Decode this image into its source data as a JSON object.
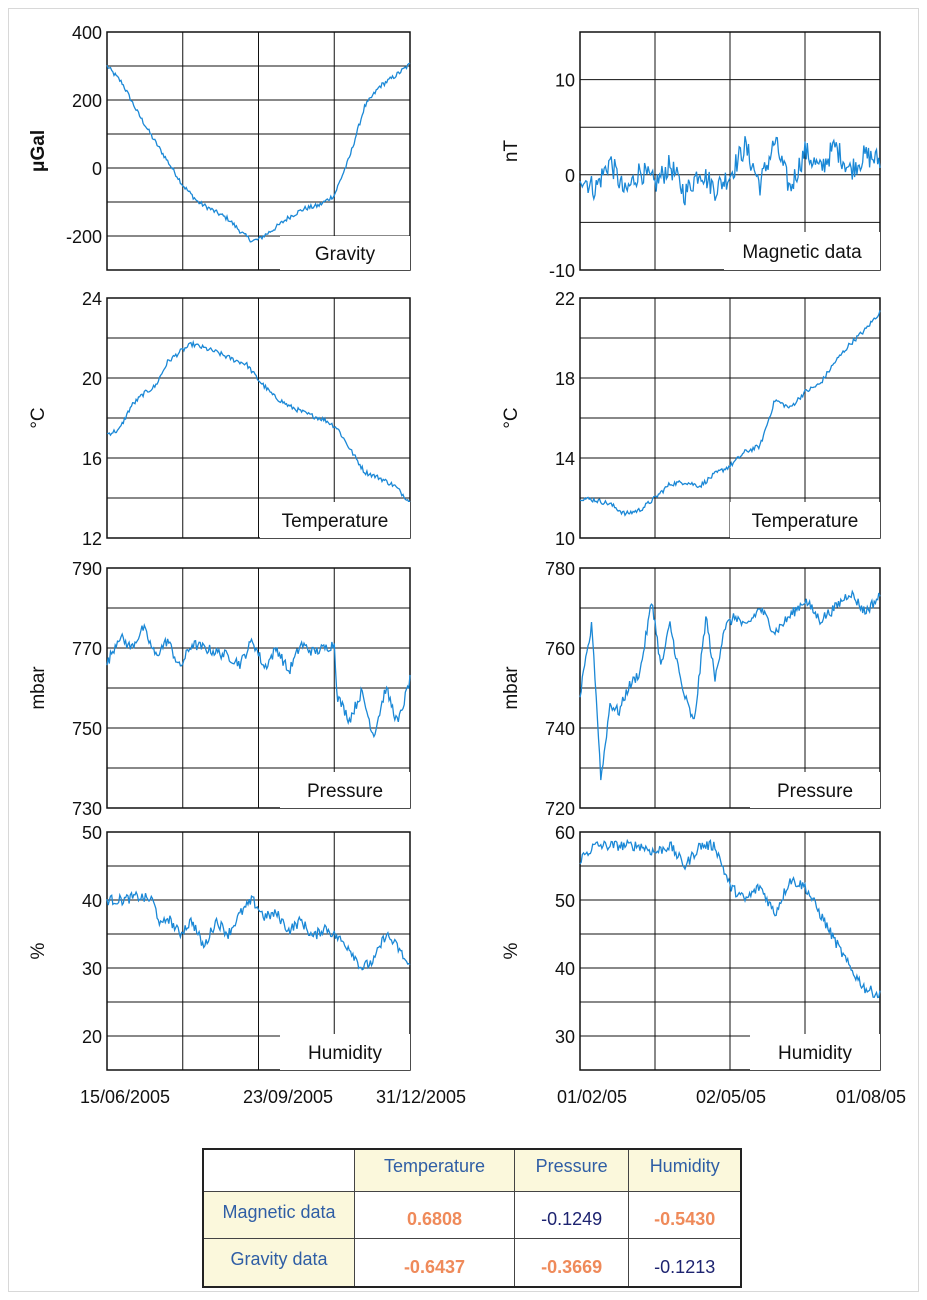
{
  "colors": {
    "line": "#1b88d6",
    "strong": "#ef8a5a",
    "weak": "#1d2370",
    "header_text": "#2f5ea5",
    "header_bg": "#fbf8dc"
  },
  "chart_data": [
    {
      "type": "line",
      "panel": "left-1",
      "label": "Gravity",
      "ylabel": "μGal",
      "ylim": [
        -300,
        400
      ],
      "yticks": [
        -200,
        0,
        200,
        400
      ],
      "yticklabels": [
        "-200",
        "0",
        "200",
        "400"
      ],
      "x": [
        0,
        0.05,
        0.1,
        0.15,
        0.2,
        0.25,
        0.3,
        0.35,
        0.4,
        0.45,
        0.48,
        0.5,
        0.55,
        0.6,
        0.65,
        0.7,
        0.75,
        0.8,
        0.85,
        0.9,
        0.95,
        1.0
      ],
      "y": [
        300,
        250,
        165,
        90,
        20,
        -50,
        -100,
        -125,
        -150,
        -195,
        -215,
        -210,
        -180,
        -145,
        -120,
        -110,
        -80,
        30,
        180,
        240,
        270,
        305
      ]
    },
    {
      "type": "line",
      "panel": "right-1",
      "label": "Magnetic data",
      "ylabel": "nT",
      "ylim": [
        -10,
        15
      ],
      "yticks": [
        -10,
        0,
        10
      ],
      "yticklabels": [
        "-10",
        "0",
        "10"
      ],
      "x": [
        0,
        0.05,
        0.1,
        0.15,
        0.2,
        0.25,
        0.3,
        0.35,
        0.4,
        0.45,
        0.5,
        0.55,
        0.6,
        0.65,
        0.7,
        0.75,
        0.8,
        0.85,
        0.9,
        0.95,
        1.0
      ],
      "y": [
        0,
        -1.5,
        1.5,
        -2,
        0.5,
        -1,
        1,
        -2,
        0.5,
        -1.5,
        0,
        3,
        -1,
        3.5,
        -1.5,
        2.5,
        0.5,
        3,
        0.5,
        2,
        1.5
      ]
    },
    {
      "type": "line",
      "panel": "left-2",
      "label": "Temperature",
      "ylabel": "°C",
      "ylim": [
        12,
        24
      ],
      "yticks": [
        12,
        16,
        20,
        24
      ],
      "yticklabels": [
        "12",
        "16",
        "20",
        "24"
      ],
      "x": [
        0,
        0.04,
        0.08,
        0.12,
        0.16,
        0.2,
        0.24,
        0.28,
        0.32,
        0.36,
        0.42,
        0.46,
        0.5,
        0.55,
        0.6,
        0.66,
        0.72,
        0.76,
        0.8,
        0.85,
        0.9,
        0.95,
        1.0
      ],
      "y": [
        17.2,
        17.4,
        18.6,
        19.2,
        19.6,
        20.8,
        21.3,
        21.7,
        21.5,
        21.3,
        20.9,
        20.7,
        19.9,
        19.1,
        18.6,
        18.2,
        17.9,
        17.5,
        16.5,
        15.3,
        15.0,
        14.6,
        13.8
      ]
    },
    {
      "type": "line",
      "panel": "right-2",
      "label": "Temperature",
      "ylabel": "°C",
      "ylim": [
        10,
        22
      ],
      "yticks": [
        10,
        14,
        18,
        22
      ],
      "yticklabels": [
        "10",
        "14",
        "18",
        "22"
      ],
      "x": [
        0,
        0.05,
        0.1,
        0.15,
        0.2,
        0.25,
        0.3,
        0.35,
        0.4,
        0.45,
        0.5,
        0.55,
        0.6,
        0.65,
        0.7,
        0.75,
        0.8,
        0.85,
        0.9,
        0.95,
        1.0
      ],
      "y": [
        12.0,
        11.9,
        11.7,
        11.2,
        11.4,
        12.0,
        12.7,
        12.8,
        12.6,
        13.2,
        13.6,
        14.3,
        14.6,
        16.9,
        16.5,
        17.3,
        17.7,
        18.8,
        19.7,
        20.4,
        21.3
      ]
    },
    {
      "type": "line",
      "panel": "left-3",
      "label": "Pressure",
      "ylabel": "mbar",
      "ylim": [
        730,
        790
      ],
      "yticks": [
        730,
        750,
        770,
        790
      ],
      "yticklabels": [
        "730",
        "750",
        "770",
        "790"
      ],
      "x": [
        0,
        0.04,
        0.08,
        0.12,
        0.16,
        0.2,
        0.24,
        0.28,
        0.32,
        0.36,
        0.4,
        0.44,
        0.48,
        0.52,
        0.56,
        0.6,
        0.64,
        0.68,
        0.72,
        0.75,
        0.76,
        0.8,
        0.84,
        0.88,
        0.92,
        0.96,
        1.0
      ],
      "y": [
        766,
        773,
        770,
        775,
        768,
        772,
        765,
        771,
        770,
        769,
        768,
        766,
        772,
        765,
        770,
        764,
        771,
        769,
        770,
        771,
        758,
        752,
        759,
        748,
        760,
        751,
        762
      ]
    },
    {
      "type": "line",
      "panel": "right-3",
      "label": "Pressure",
      "ylabel": "mbar",
      "ylim": [
        720,
        780
      ],
      "yticks": [
        720,
        740,
        760,
        780
      ],
      "yticklabels": [
        "720",
        "740",
        "760",
        "780"
      ],
      "x": [
        0,
        0.04,
        0.07,
        0.1,
        0.13,
        0.16,
        0.2,
        0.24,
        0.27,
        0.3,
        0.34,
        0.38,
        0.42,
        0.45,
        0.48,
        0.52,
        0.55,
        0.6,
        0.65,
        0.7,
        0.75,
        0.8,
        0.85,
        0.9,
        0.95,
        1.0
      ],
      "y": [
        748,
        766,
        727,
        746,
        744,
        750,
        754,
        772,
        755,
        766,
        750,
        741,
        768,
        752,
        765,
        768,
        765,
        770,
        764,
        768,
        772,
        767,
        770,
        774,
        769,
        773
      ]
    },
    {
      "type": "line",
      "panel": "left-4",
      "label": "Humidity",
      "ylabel": "%",
      "ylim": [
        15,
        50
      ],
      "yticks": [
        20,
        30,
        40,
        50
      ],
      "yticklabels": [
        "20",
        "30",
        "40",
        "50"
      ],
      "x": [
        0,
        0.05,
        0.1,
        0.15,
        0.18,
        0.2,
        0.24,
        0.28,
        0.32,
        0.36,
        0.4,
        0.44,
        0.48,
        0.52,
        0.56,
        0.6,
        0.64,
        0.68,
        0.72,
        0.76,
        0.8,
        0.84,
        0.88,
        0.92,
        0.96,
        1.0
      ],
      "y": [
        40,
        40,
        40.5,
        40,
        36,
        37.5,
        35,
        37,
        33,
        37,
        35,
        38,
        40,
        37.5,
        38,
        35.5,
        37,
        34.5,
        36,
        34.5,
        33,
        30,
        31,
        35,
        33,
        30
      ]
    },
    {
      "type": "line",
      "panel": "right-4",
      "label": "Humidity",
      "ylabel": "%",
      "ylim": [
        25,
        60
      ],
      "yticks": [
        30,
        40,
        50,
        60
      ],
      "yticklabels": [
        "30",
        "40",
        "50",
        "60"
      ],
      "x": [
        0,
        0.05,
        0.1,
        0.15,
        0.2,
        0.25,
        0.3,
        0.35,
        0.4,
        0.45,
        0.5,
        0.55,
        0.6,
        0.65,
        0.7,
        0.75,
        0.8,
        0.85,
        0.9,
        0.95,
        1.0
      ],
      "y": [
        56,
        58,
        58,
        58,
        58,
        57,
        58,
        55,
        58,
        58,
        52,
        50,
        52,
        48,
        53,
        52,
        48,
        44,
        40,
        37,
        36
      ]
    }
  ],
  "x_tick_labels": {
    "left": [
      "15/06/2005",
      "23/09/2005",
      "31/12/2005"
    ],
    "right": [
      "01/02/05",
      "02/05/05",
      "01/08/05"
    ]
  },
  "correlation_table": {
    "columns": [
      "Temperature",
      "Pressure",
      "Humidity"
    ],
    "rows": [
      {
        "label": "Magnetic data",
        "values": [
          "0.6808",
          "-0.1249",
          "-0.5430"
        ],
        "strong": [
          true,
          false,
          true
        ]
      },
      {
        "label": "Gravity data",
        "values": [
          "-0.6437",
          "-0.3669",
          "-0.1213"
        ],
        "strong": [
          true,
          true,
          false
        ]
      }
    ]
  }
}
